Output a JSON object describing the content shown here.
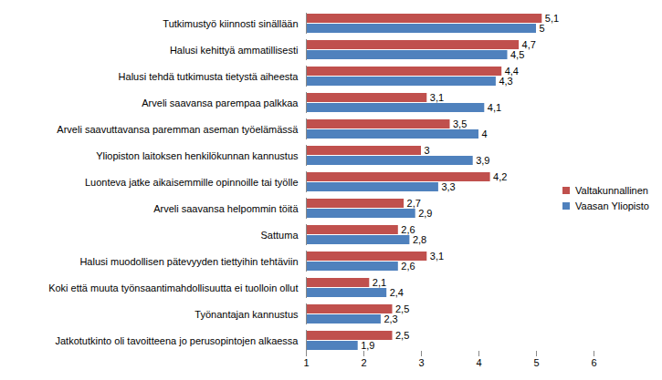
{
  "chart_data": {
    "type": "bar",
    "orientation": "horizontal",
    "categories": [
      "Tutkimustyö kiinnosti sinällään",
      "Halusi kehittyä ammatillisesti",
      "Halusi tehdä tutkimusta tietystä aiheesta",
      "Arveli saavansa parempaa palkkaa",
      "Arveli saavuttavansa paremman aseman työelämässä",
      "Yliopiston laitoksen henkilökunnan kannustus",
      "Luonteva jatke aikaisemmille opinnoille tai työlle",
      "Arveli saavansa helpommin töitä",
      "Sattuma",
      "Halusi muodollisen pätevyyden tiettyihin tehtäviin",
      "Koki että muuta työnsaantimahdollisuutta ei tuolloin ollut",
      "Työnantajan kannustus",
      "Jatkotutkinto oli tavoitteena jo perusopintojen alkaessa"
    ],
    "series": [
      {
        "name": "Valtakunnallinen",
        "color": "#C0504D",
        "values": [
          5.1,
          4.7,
          4.4,
          3.1,
          3.5,
          3,
          4.2,
          2.7,
          2.6,
          3.1,
          2.1,
          2.5,
          2.5
        ],
        "value_labels": [
          "5,1",
          "4,7",
          "4,4",
          "3,1",
          "3,5",
          "3",
          "4,2",
          "2,7",
          "2,6",
          "3,1",
          "2,1",
          "2,5",
          "2,5"
        ]
      },
      {
        "name": "Vaasan Yliopisto",
        "color": "#4F81BD",
        "values": [
          5,
          4.5,
          4.3,
          4.1,
          4,
          3.9,
          3.3,
          2.9,
          2.8,
          2.6,
          2.4,
          2.3,
          1.9
        ],
        "value_labels": [
          "5",
          "4,5",
          "4,3",
          "4,1",
          "4",
          "3,9",
          "3,3",
          "2,9",
          "2,8",
          "2,6",
          "2,4",
          "2,3",
          "1,9"
        ]
      }
    ],
    "xlim": [
      1,
      6
    ],
    "xticks": [
      1,
      2,
      3,
      4,
      5,
      6
    ],
    "data_labels": true,
    "grid": false,
    "legend": "right"
  }
}
